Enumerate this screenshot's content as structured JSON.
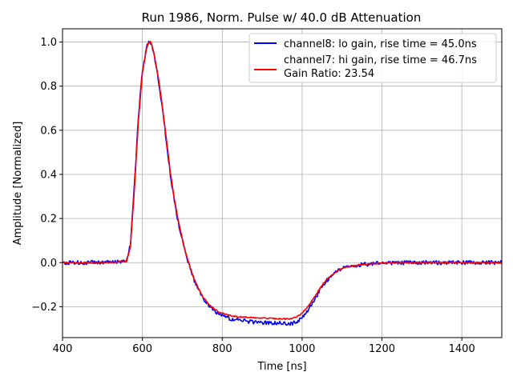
{
  "chart_data": {
    "type": "line",
    "title": "Run 1986, Norm. Pulse w/ 40.0 dB Attenuation",
    "xlabel": "Time [ns]",
    "ylabel": "Amplitude [Normalized]",
    "xlim": [
      400,
      1500
    ],
    "ylim": [
      -0.34,
      1.06
    ],
    "xticks": [
      400,
      600,
      800,
      1000,
      1200,
      1400
    ],
    "xtick_labels": [
      "400",
      "600",
      "800",
      "1000",
      "1200",
      "1400"
    ],
    "yticks": [
      -0.2,
      0.0,
      0.2,
      0.4,
      0.6,
      0.8,
      1.0
    ],
    "ytick_labels": [
      "−0.2",
      "0.0",
      "0.2",
      "0.4",
      "0.6",
      "0.8",
      "1.0"
    ],
    "grid": true,
    "legend_position": "top-right",
    "series": [
      {
        "name": "channel8: lo gain, rise time = 45.0ns",
        "color": "#0000ff",
        "noisy": true,
        "x": [
          400,
          500,
          560,
          570,
          580,
          590,
          600,
          610,
          615,
          620,
          625,
          630,
          640,
          650,
          660,
          670,
          680,
          690,
          700,
          710,
          720,
          730,
          740,
          750,
          760,
          770,
          780,
          790,
          800,
          820,
          840,
          860,
          880,
          900,
          920,
          940,
          960,
          970,
          980,
          990,
          1000,
          1010,
          1020,
          1030,
          1040,
          1050,
          1060,
          1070,
          1080,
          1090,
          1100,
          1120,
          1140,
          1160,
          1180,
          1200,
          1250,
          1300,
          1400,
          1500
        ],
        "y": [
          0.0,
          0.0,
          0.005,
          0.08,
          0.35,
          0.66,
          0.87,
          0.97,
          1.0,
          0.995,
          0.975,
          0.93,
          0.83,
          0.7,
          0.55,
          0.4,
          0.28,
          0.18,
          0.1,
          0.03,
          -0.03,
          -0.08,
          -0.12,
          -0.155,
          -0.18,
          -0.2,
          -0.22,
          -0.23,
          -0.24,
          -0.255,
          -0.26,
          -0.265,
          -0.27,
          -0.272,
          -0.273,
          -0.274,
          -0.275,
          -0.275,
          -0.273,
          -0.265,
          -0.25,
          -0.225,
          -0.2,
          -0.17,
          -0.14,
          -0.11,
          -0.085,
          -0.065,
          -0.05,
          -0.038,
          -0.028,
          -0.018,
          -0.012,
          -0.008,
          -0.004,
          -0.002,
          0.0,
          0.0,
          0.0,
          0.0
        ]
      },
      {
        "name": "channel7: hi gain, rise time = 46.7ns",
        "note": "Gain Ratio: 23.54",
        "color": "#ff0000",
        "noisy": false,
        "x": [
          400,
          500,
          560,
          570,
          580,
          590,
          600,
          610,
          615,
          620,
          625,
          630,
          640,
          650,
          660,
          670,
          680,
          690,
          700,
          710,
          720,
          730,
          740,
          750,
          760,
          770,
          780,
          790,
          800,
          820,
          840,
          860,
          880,
          900,
          920,
          940,
          960,
          970,
          980,
          990,
          1000,
          1010,
          1020,
          1030,
          1040,
          1050,
          1060,
          1070,
          1080,
          1090,
          1100,
          1120,
          1140,
          1160,
          1180,
          1200,
          1250,
          1300,
          1400,
          1500
        ],
        "y": [
          0.0,
          0.0,
          0.005,
          0.07,
          0.33,
          0.64,
          0.86,
          0.965,
          0.995,
          1.0,
          0.98,
          0.94,
          0.84,
          0.71,
          0.56,
          0.41,
          0.29,
          0.19,
          0.11,
          0.035,
          -0.025,
          -0.075,
          -0.115,
          -0.15,
          -0.175,
          -0.195,
          -0.21,
          -0.222,
          -0.23,
          -0.24,
          -0.245,
          -0.248,
          -0.25,
          -0.252,
          -0.253,
          -0.254,
          -0.255,
          -0.255,
          -0.25,
          -0.242,
          -0.23,
          -0.21,
          -0.185,
          -0.158,
          -0.13,
          -0.103,
          -0.08,
          -0.062,
          -0.048,
          -0.036,
          -0.027,
          -0.017,
          -0.011,
          -0.007,
          -0.004,
          -0.002,
          0.0,
          0.0,
          0.0,
          0.0
        ]
      }
    ]
  }
}
